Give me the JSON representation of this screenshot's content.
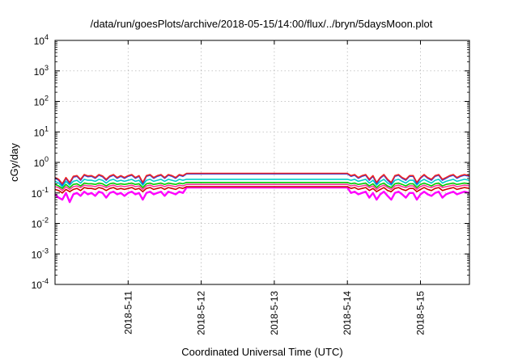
{
  "chart_data": {
    "type": "line",
    "title": "/data/run/goesPlots/archive/2018-05-15/14:00/flux/../bryn/5daysMoon.plot",
    "xlabel": "Coordinated Universal Time (UTC)",
    "ylabel": "cGy/day",
    "yscale": "log",
    "ylim": [
      0.0001,
      10000
    ],
    "xlim": [
      0.0,
      5.67
    ],
    "grid": true,
    "legend": "none",
    "x_ticks": [
      {
        "label": "2018-5-11",
        "value": 1
      },
      {
        "label": "2018-5-12",
        "value": 2
      },
      {
        "label": "2018-5-13",
        "value": 3
      },
      {
        "label": "2018-5-14",
        "value": 4
      },
      {
        "label": "2018-5-15",
        "value": 5
      }
    ],
    "y_ticks": [
      {
        "base": "10",
        "exp": "4",
        "value": 10000
      },
      {
        "base": "10",
        "exp": "3",
        "value": 1000
      },
      {
        "base": "10",
        "exp": "2",
        "value": 100
      },
      {
        "base": "10",
        "exp": "1",
        "value": 10
      },
      {
        "base": "10",
        "exp": "0",
        "value": 1
      },
      {
        "base": "10",
        "exp": "-1",
        "value": 0.1
      },
      {
        "base": "10",
        "exp": "-2",
        "value": 0.01
      },
      {
        "base": "10",
        "exp": "-3",
        "value": 0.001
      },
      {
        "base": "10",
        "exp": "-4",
        "value": 0.0001
      }
    ],
    "series": [
      {
        "color": "#ff00ff",
        "values_x": [
          0.0,
          0.05,
          0.1,
          0.15,
          0.2,
          0.25,
          0.3,
          0.35,
          0.4,
          0.45,
          0.5,
          0.55,
          0.6,
          0.65,
          0.7,
          0.75,
          0.8,
          0.85,
          0.9,
          0.95,
          1.0,
          1.05,
          1.1,
          1.15,
          1.2,
          1.25,
          1.3,
          1.35,
          1.4,
          1.45,
          1.5,
          1.55,
          1.6,
          1.65,
          1.7,
          1.75,
          1.8,
          4.0,
          4.05,
          4.1,
          4.15,
          4.2,
          4.25,
          4.3,
          4.35,
          4.4,
          4.45,
          4.5,
          4.55,
          4.6,
          4.65,
          4.7,
          4.75,
          4.8,
          4.85,
          4.9,
          4.95,
          5.0,
          5.05,
          5.1,
          5.15,
          5.2,
          5.25,
          5.3,
          5.35,
          5.4,
          5.45,
          5.5,
          5.55,
          5.6,
          5.67
        ],
        "values_y": [
          0.09,
          0.07,
          0.06,
          0.1,
          0.05,
          0.09,
          0.1,
          0.08,
          0.11,
          0.09,
          0.1,
          0.08,
          0.11,
          0.1,
          0.07,
          0.1,
          0.11,
          0.09,
          0.1,
          0.08,
          0.1,
          0.11,
          0.09,
          0.1,
          0.06,
          0.1,
          0.11,
          0.09,
          0.1,
          0.11,
          0.08,
          0.11,
          0.1,
          0.09,
          0.11,
          0.1,
          0.15,
          0.15,
          0.1,
          0.11,
          0.09,
          0.1,
          0.11,
          0.07,
          0.1,
          0.06,
          0.09,
          0.11,
          0.08,
          0.06,
          0.1,
          0.11,
          0.09,
          0.07,
          0.1,
          0.1,
          0.06,
          0.09,
          0.11,
          0.09,
          0.08,
          0.1,
          0.11,
          0.07,
          0.09,
          0.1,
          0.11,
          0.09,
          0.1,
          0.11,
          0.1
        ]
      },
      {
        "color": "#cc0000",
        "values_x": [
          0.0,
          0.05,
          0.1,
          0.15,
          0.2,
          0.25,
          0.3,
          0.35,
          0.4,
          0.45,
          0.5,
          0.55,
          0.6,
          0.65,
          0.7,
          0.75,
          0.8,
          0.85,
          0.9,
          0.95,
          1.0,
          1.05,
          1.1,
          1.15,
          1.2,
          1.25,
          1.3,
          1.35,
          1.4,
          1.45,
          1.5,
          1.55,
          1.6,
          1.65,
          1.7,
          1.75,
          1.8,
          4.0,
          4.05,
          4.1,
          4.15,
          4.2,
          4.25,
          4.3,
          4.35,
          4.4,
          4.45,
          4.5,
          4.55,
          4.6,
          4.65,
          4.7,
          4.75,
          4.8,
          4.85,
          4.9,
          4.95,
          5.0,
          5.05,
          5.1,
          5.15,
          5.2,
          5.25,
          5.3,
          5.35,
          5.4,
          5.45,
          5.5,
          5.55,
          5.6,
          5.67
        ],
        "values_y": [
          0.13,
          0.12,
          0.1,
          0.13,
          0.11,
          0.13,
          0.14,
          0.12,
          0.15,
          0.14,
          0.14,
          0.13,
          0.15,
          0.14,
          0.12,
          0.14,
          0.15,
          0.13,
          0.14,
          0.13,
          0.14,
          0.15,
          0.13,
          0.14,
          0.11,
          0.14,
          0.15,
          0.13,
          0.14,
          0.15,
          0.13,
          0.15,
          0.14,
          0.13,
          0.15,
          0.14,
          0.16,
          0.16,
          0.14,
          0.15,
          0.13,
          0.14,
          0.15,
          0.12,
          0.14,
          0.11,
          0.13,
          0.15,
          0.12,
          0.11,
          0.14,
          0.15,
          0.13,
          0.12,
          0.14,
          0.14,
          0.11,
          0.13,
          0.15,
          0.13,
          0.12,
          0.14,
          0.15,
          0.12,
          0.13,
          0.14,
          0.15,
          0.13,
          0.14,
          0.15,
          0.14
        ]
      },
      {
        "color": "#ff3399",
        "values_x": [
          0.0,
          0.05,
          0.1,
          0.15,
          0.2,
          0.25,
          0.3,
          0.35,
          0.4,
          0.45,
          0.5,
          0.55,
          0.6,
          0.65,
          0.7,
          0.75,
          0.8,
          0.85,
          0.9,
          0.95,
          1.0,
          1.05,
          1.1,
          1.15,
          1.2,
          1.25,
          1.3,
          1.35,
          1.4,
          1.45,
          1.5,
          1.55,
          1.6,
          1.65,
          1.7,
          1.75,
          1.8,
          4.0,
          4.05,
          4.1,
          4.15,
          4.2,
          4.25,
          4.3,
          4.35,
          4.4,
          4.45,
          4.5,
          4.55,
          4.6,
          4.65,
          4.7,
          4.75,
          4.8,
          4.85,
          4.9,
          4.95,
          5.0,
          5.05,
          5.1,
          5.15,
          5.2,
          5.25,
          5.3,
          5.35,
          5.4,
          5.45,
          5.5,
          5.55,
          5.6,
          5.67
        ],
        "values_y": [
          0.16,
          0.15,
          0.12,
          0.16,
          0.13,
          0.16,
          0.17,
          0.15,
          0.18,
          0.17,
          0.17,
          0.16,
          0.18,
          0.17,
          0.15,
          0.17,
          0.18,
          0.16,
          0.17,
          0.16,
          0.17,
          0.18,
          0.16,
          0.17,
          0.13,
          0.17,
          0.18,
          0.16,
          0.17,
          0.18,
          0.16,
          0.18,
          0.17,
          0.16,
          0.18,
          0.17,
          0.19,
          0.19,
          0.17,
          0.18,
          0.16,
          0.17,
          0.18,
          0.15,
          0.17,
          0.13,
          0.16,
          0.18,
          0.15,
          0.13,
          0.17,
          0.18,
          0.16,
          0.15,
          0.17,
          0.17,
          0.13,
          0.16,
          0.18,
          0.16,
          0.15,
          0.17,
          0.18,
          0.15,
          0.16,
          0.17,
          0.18,
          0.16,
          0.17,
          0.18,
          0.17
        ]
      },
      {
        "color": "#00cc00",
        "values_x": [
          0.0,
          0.05,
          0.1,
          0.15,
          0.2,
          0.25,
          0.3,
          0.35,
          0.4,
          0.45,
          0.5,
          0.55,
          0.6,
          0.65,
          0.7,
          0.75,
          0.8,
          0.85,
          0.9,
          0.95,
          1.0,
          1.05,
          1.1,
          1.15,
          1.2,
          1.25,
          1.3,
          1.35,
          1.4,
          1.45,
          1.5,
          1.55,
          1.6,
          1.65,
          1.7,
          1.75,
          1.8,
          4.0,
          4.05,
          4.1,
          4.15,
          4.2,
          4.25,
          4.3,
          4.35,
          4.4,
          4.45,
          4.5,
          4.55,
          4.6,
          4.65,
          4.7,
          4.75,
          4.8,
          4.85,
          4.9,
          4.95,
          5.0,
          5.05,
          5.1,
          5.15,
          5.2,
          5.25,
          5.3,
          5.35,
          5.4,
          5.45,
          5.5,
          5.55,
          5.6,
          5.67
        ],
        "values_y": [
          0.19,
          0.17,
          0.14,
          0.19,
          0.15,
          0.19,
          0.2,
          0.17,
          0.21,
          0.2,
          0.2,
          0.19,
          0.21,
          0.2,
          0.17,
          0.2,
          0.21,
          0.19,
          0.2,
          0.19,
          0.2,
          0.21,
          0.19,
          0.2,
          0.15,
          0.2,
          0.21,
          0.19,
          0.2,
          0.21,
          0.19,
          0.21,
          0.2,
          0.19,
          0.21,
          0.2,
          0.22,
          0.22,
          0.2,
          0.21,
          0.19,
          0.2,
          0.21,
          0.17,
          0.2,
          0.15,
          0.19,
          0.21,
          0.17,
          0.15,
          0.2,
          0.21,
          0.19,
          0.17,
          0.2,
          0.2,
          0.15,
          0.19,
          0.21,
          0.19,
          0.17,
          0.2,
          0.21,
          0.17,
          0.19,
          0.2,
          0.21,
          0.19,
          0.2,
          0.21,
          0.2
        ]
      },
      {
        "color": "#00cccc",
        "values_x": [
          0.0,
          0.05,
          0.1,
          0.15,
          0.2,
          0.25,
          0.3,
          0.35,
          0.4,
          0.45,
          0.5,
          0.55,
          0.6,
          0.65,
          0.7,
          0.75,
          0.8,
          0.85,
          0.9,
          0.95,
          1.0,
          1.05,
          1.1,
          1.15,
          1.2,
          1.25,
          1.3,
          1.35,
          1.4,
          1.45,
          1.5,
          1.55,
          1.6,
          1.65,
          1.7,
          1.75,
          1.8,
          4.0,
          4.05,
          4.1,
          4.15,
          4.2,
          4.25,
          4.3,
          4.35,
          4.4,
          4.45,
          4.5,
          4.55,
          4.6,
          4.65,
          4.7,
          4.75,
          4.8,
          4.85,
          4.9,
          4.95,
          5.0,
          5.05,
          5.1,
          5.15,
          5.2,
          5.25,
          5.3,
          5.35,
          5.4,
          5.45,
          5.5,
          5.55,
          5.6,
          5.67
        ],
        "values_y": [
          0.24,
          0.21,
          0.16,
          0.24,
          0.18,
          0.24,
          0.26,
          0.21,
          0.28,
          0.26,
          0.26,
          0.24,
          0.28,
          0.26,
          0.21,
          0.26,
          0.28,
          0.24,
          0.26,
          0.24,
          0.26,
          0.28,
          0.24,
          0.26,
          0.18,
          0.26,
          0.28,
          0.24,
          0.26,
          0.28,
          0.24,
          0.28,
          0.26,
          0.24,
          0.28,
          0.26,
          0.28,
          0.28,
          0.26,
          0.28,
          0.24,
          0.26,
          0.28,
          0.21,
          0.26,
          0.18,
          0.24,
          0.28,
          0.21,
          0.18,
          0.26,
          0.28,
          0.24,
          0.21,
          0.26,
          0.26,
          0.18,
          0.24,
          0.28,
          0.24,
          0.21,
          0.26,
          0.28,
          0.21,
          0.24,
          0.26,
          0.28,
          0.24,
          0.26,
          0.28,
          0.26
        ]
      },
      {
        "color": "#2244ee",
        "values_x": [
          0.0,
          0.05,
          0.1,
          0.15,
          0.2,
          0.25,
          0.3,
          0.35,
          0.4,
          0.45,
          0.5,
          0.55,
          0.6,
          0.65,
          0.7,
          0.75,
          0.8,
          0.85,
          0.9,
          0.95,
          1.0,
          1.05,
          1.1,
          1.15,
          1.2,
          1.25,
          1.3,
          1.35,
          1.4,
          1.45,
          1.5,
          1.55,
          1.6,
          1.65,
          1.7,
          1.75,
          1.8,
          4.0,
          4.05,
          4.1,
          4.15,
          4.2,
          4.25,
          4.3,
          4.35,
          4.4,
          4.45,
          4.5,
          4.55,
          4.6,
          4.65,
          4.7,
          4.75,
          4.8,
          4.85,
          4.9,
          4.95,
          5.0,
          5.05,
          5.1,
          5.15,
          5.2,
          5.25,
          5.3,
          5.35,
          5.4,
          5.45,
          5.5,
          5.55,
          5.6,
          5.67
        ],
        "values_y": [
          0.3,
          0.26,
          0.18,
          0.3,
          0.2,
          0.33,
          0.35,
          0.26,
          0.38,
          0.34,
          0.35,
          0.3,
          0.38,
          0.34,
          0.26,
          0.34,
          0.38,
          0.3,
          0.35,
          0.3,
          0.35,
          0.38,
          0.3,
          0.35,
          0.2,
          0.35,
          0.38,
          0.3,
          0.35,
          0.38,
          0.3,
          0.38,
          0.35,
          0.3,
          0.38,
          0.35,
          0.42,
          0.42,
          0.35,
          0.38,
          0.3,
          0.35,
          0.38,
          0.26,
          0.35,
          0.2,
          0.3,
          0.38,
          0.26,
          0.2,
          0.35,
          0.38,
          0.3,
          0.26,
          0.35,
          0.35,
          0.2,
          0.3,
          0.38,
          0.3,
          0.26,
          0.35,
          0.38,
          0.26,
          0.3,
          0.35,
          0.38,
          0.3,
          0.35,
          0.38,
          0.35
        ]
      },
      {
        "color": "#ee2222",
        "values_x": [
          0.0,
          0.05,
          0.1,
          0.15,
          0.2,
          0.25,
          0.3,
          0.35,
          0.4,
          0.45,
          0.5,
          0.55,
          0.6,
          0.65,
          0.7,
          0.75,
          0.8,
          0.85,
          0.9,
          0.95,
          1.0,
          1.05,
          1.1,
          1.15,
          1.2,
          1.25,
          1.3,
          1.35,
          1.4,
          1.45,
          1.5,
          1.55,
          1.6,
          1.65,
          1.7,
          1.75,
          1.8,
          4.0,
          4.05,
          4.1,
          4.15,
          4.2,
          4.25,
          4.3,
          4.35,
          4.4,
          4.45,
          4.5,
          4.55,
          4.6,
          4.65,
          4.7,
          4.75,
          4.8,
          4.85,
          4.9,
          4.95,
          5.0,
          5.05,
          5.1,
          5.15,
          5.2,
          5.25,
          5.3,
          5.35,
          5.4,
          5.45,
          5.5,
          5.55,
          5.6,
          5.67
        ],
        "values_y": [
          0.32,
          0.28,
          0.2,
          0.32,
          0.22,
          0.35,
          0.37,
          0.28,
          0.4,
          0.36,
          0.37,
          0.32,
          0.4,
          0.36,
          0.28,
          0.36,
          0.4,
          0.32,
          0.37,
          0.32,
          0.37,
          0.4,
          0.32,
          0.37,
          0.22,
          0.37,
          0.4,
          0.32,
          0.37,
          0.4,
          0.32,
          0.4,
          0.37,
          0.32,
          0.4,
          0.37,
          0.44,
          0.44,
          0.37,
          0.4,
          0.32,
          0.37,
          0.4,
          0.28,
          0.37,
          0.22,
          0.32,
          0.4,
          0.28,
          0.22,
          0.37,
          0.4,
          0.32,
          0.28,
          0.37,
          0.37,
          0.22,
          0.32,
          0.4,
          0.32,
          0.28,
          0.37,
          0.4,
          0.28,
          0.32,
          0.37,
          0.4,
          0.32,
          0.37,
          0.4,
          0.37
        ]
      }
    ]
  }
}
